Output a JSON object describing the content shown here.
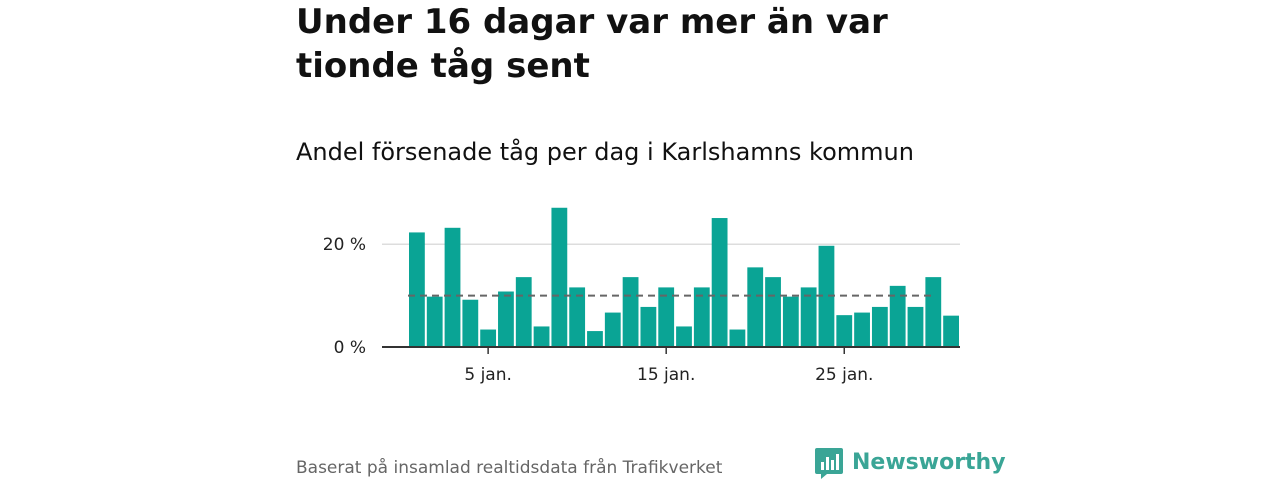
{
  "title": "Under 16 dagar var mer än var tionde tåg sent",
  "subtitle": "Andel försenade tåg per dag i Karlshamns kommun",
  "footer": {
    "source": "Baserat på insamlad realtidsdata från Trafikverket",
    "brand": "Newsworthy"
  },
  "colors": {
    "bar": "#0aa495",
    "reference_line": "#666666",
    "grid": "#dddddd",
    "axis": "#333333",
    "brand": "#3aa596"
  },
  "chart_data": {
    "type": "bar",
    "title": "Andel försenade tåg per dag i Karlshamns kommun",
    "xlabel": "",
    "ylabel": "",
    "x": [
      1,
      2,
      3,
      4,
      5,
      6,
      7,
      8,
      9,
      10,
      11,
      12,
      13,
      14,
      15,
      16,
      17,
      18,
      19,
      20,
      21,
      22,
      23,
      24,
      25,
      26,
      27,
      28,
      29,
      30,
      31
    ],
    "values": [
      22.3,
      9.8,
      23.2,
      9.2,
      3.4,
      10.8,
      13.6,
      4.0,
      27.1,
      11.6,
      3.1,
      6.7,
      13.6,
      7.8,
      11.6,
      4.0,
      11.6,
      25.1,
      3.4,
      15.5,
      13.6,
      9.8,
      11.6,
      19.7,
      6.2,
      6.7,
      7.8,
      11.9,
      7.8,
      13.6,
      6.1
    ],
    "reference_line": 10,
    "ylim": [
      0,
      29
    ],
    "yticks": [
      0,
      20
    ],
    "ytick_labels": [
      "0 %",
      "20 %"
    ],
    "xticks": [
      5,
      15,
      25
    ],
    "xtick_labels": [
      "5 jan.",
      "15 jan.",
      "25 jan."
    ],
    "grid": true,
    "legend": "none"
  }
}
